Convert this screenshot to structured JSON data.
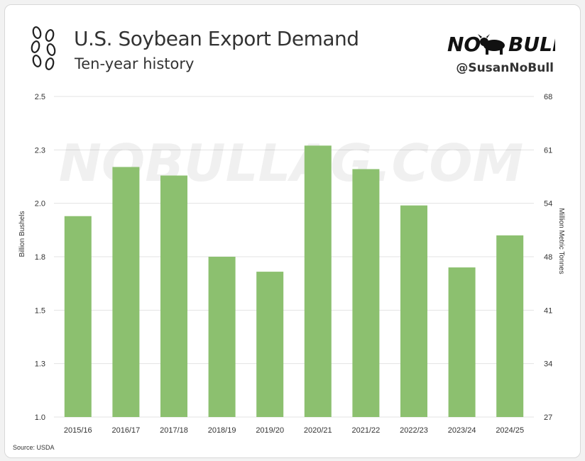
{
  "header": {
    "title": "U.S. Soybean Export Demand",
    "subtitle": "Ten-year history",
    "brand_logo_text": "NO BULL",
    "handle": "@SusanNoBull",
    "watermark": "NOBULLAG.COM"
  },
  "footer": {
    "source": "Source: USDA"
  },
  "colors": {
    "bar": "#8cc06f",
    "grid": "#e3e3e3",
    "text": "#333333"
  },
  "chart_data": {
    "type": "bar",
    "categories": [
      "2015/16",
      "2016/17",
      "2017/18",
      "2018/19",
      "2019/20",
      "2020/21",
      "2021/22",
      "2022/23",
      "2023/24",
      "2024/25"
    ],
    "values": [
      1.94,
      2.17,
      2.13,
      1.75,
      1.68,
      2.27,
      2.16,
      1.99,
      1.7,
      1.85
    ],
    "ylabel": "Billion Bushels",
    "y2label": "Million Metric Tonnes",
    "ylim": [
      1.0,
      2.5
    ],
    "y_ticks": [
      1.0,
      1.3,
      1.5,
      1.8,
      2.0,
      2.3,
      2.5
    ],
    "y_tick_labels": [
      "1.0",
      "1.3",
      "1.5",
      "1.8",
      "2.0",
      "2.3",
      "2.5"
    ],
    "y2_tick_labels": [
      "27",
      "34",
      "41",
      "48",
      "54",
      "61",
      "68"
    ],
    "grid": true
  }
}
